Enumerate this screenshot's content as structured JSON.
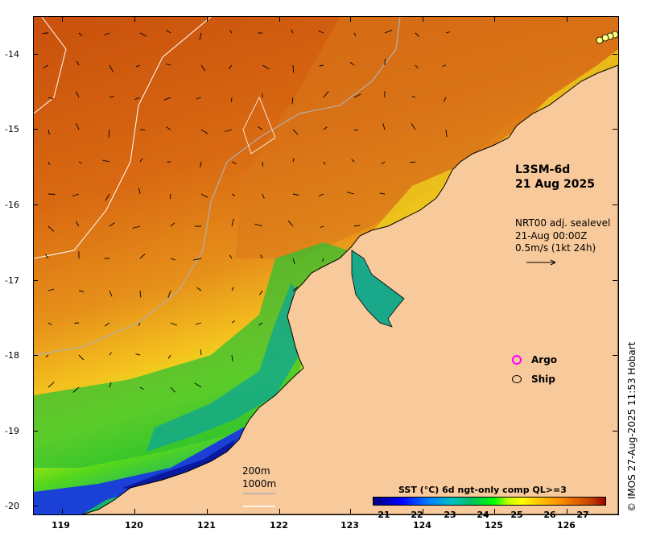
{
  "map": {
    "y_ticks": [
      "-14",
      "-15",
      "-16",
      "-17",
      "-18",
      "-19",
      "-20"
    ],
    "x_ticks": [
      "119",
      "120",
      "121",
      "122",
      "123",
      "124",
      "125",
      "126"
    ],
    "product": "L3SM-6d",
    "date": "21 Aug 2025",
    "nrt_line1": "NRT00 adj. sealevel",
    "nrt_line2": "21-Aug 00:00Z",
    "nrt_line3": "0.5m/s (1kt 24h)",
    "legend": [
      {
        "label": "Argo",
        "color": "#ff00ff"
      },
      {
        "label": "Ship",
        "color": "#000000"
      }
    ],
    "scale_200": "200m",
    "scale_1000": "1000m",
    "colorbar_title": "SST (°C) 6d ngt-only comp QL>=3",
    "colorbar_ticks": [
      "21",
      "22",
      "23",
      "24",
      "25",
      "26",
      "27"
    ],
    "credit": "© IMOS 27-Aug-2025 11:53 Hobart",
    "colors": {
      "land": "#f8c99a",
      "warm": "#d96a12",
      "cool": "#1f3fd0"
    }
  }
}
